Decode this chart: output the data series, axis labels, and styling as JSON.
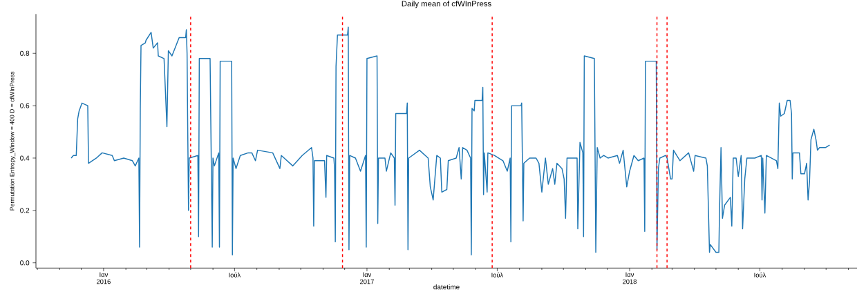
{
  "chart_data": {
    "type": "line",
    "title": "Daily mean of cfWInPress",
    "xlabel": "datetime",
    "ylabel": "Permutation Entropy_Window = 400 D = cfWInPress",
    "xlim": [
      "2015-09-29",
      "2018-11-13"
    ],
    "ylim": [
      -0.02,
      0.95
    ],
    "yticks": [
      {
        "value": 0,
        "label": "0.0"
      },
      0.2,
      0.4,
      0.6,
      0.8
    ],
    "xticks": [
      {
        "value": "2015-10-01",
        "label": null
      },
      {
        "value": "2015-11-01",
        "label": null
      },
      {
        "value": "2015-12-01",
        "label": null
      },
      {
        "value": "2016-01-01",
        "label": "Ιαν 2016"
      },
      {
        "value": "2016-02-01",
        "label": null
      },
      {
        "value": "2016-03-01",
        "label": null
      },
      {
        "value": "2016-04-01",
        "label": null
      },
      {
        "value": "2016-05-01",
        "label": null
      },
      {
        "value": "2016-06-01",
        "label": null
      },
      {
        "value": "2016-07-01",
        "label": "Ιούλ"
      },
      {
        "value": "2016-08-01",
        "label": null
      },
      {
        "value": "2016-09-01",
        "label": null
      },
      {
        "value": "2016-10-01",
        "label": null
      },
      {
        "value": "2016-11-01",
        "label": null
      },
      {
        "value": "2016-12-01",
        "label": null
      },
      {
        "value": "2017-01-01",
        "label": "Ιαν 2017"
      },
      {
        "value": "2017-02-01",
        "label": null
      },
      {
        "value": "2017-03-01",
        "label": null
      },
      {
        "value": "2017-04-01",
        "label": null
      },
      {
        "value": "2017-05-01",
        "label": null
      },
      {
        "value": "2017-06-01",
        "label": null
      },
      {
        "value": "2017-07-01",
        "label": "Ιούλ"
      },
      {
        "value": "2017-08-01",
        "label": null
      },
      {
        "value": "2017-09-01",
        "label": null
      },
      {
        "value": "2017-10-01",
        "label": null
      },
      {
        "value": "2017-11-01",
        "label": null
      },
      {
        "value": "2017-12-01",
        "label": null
      },
      {
        "value": "2018-01-01",
        "label": "Ιαν 2018"
      },
      {
        "value": "2018-02-01",
        "label": null
      },
      {
        "value": "2018-03-01",
        "label": null
      },
      {
        "value": "2018-04-01",
        "label": null
      },
      {
        "value": "2018-05-01",
        "label": null
      },
      {
        "value": "2018-06-01",
        "label": null
      },
      {
        "value": "2018-07-01",
        "label": "Ιούλ"
      },
      {
        "value": "2018-08-01",
        "label": null
      },
      {
        "value": "2018-09-01",
        "label": null
      },
      {
        "value": "2018-10-01",
        "label": null
      },
      {
        "value": "2018-11-01",
        "label": null
      }
    ],
    "grid": false,
    "marker": "none",
    "line_style": "solid",
    "ref_lines": [
      {
        "axis": "x",
        "value": "2016-05-01",
        "color": "#ff0000",
        "line_style": "dashed"
      },
      {
        "axis": "x",
        "value": "2016-11-28",
        "color": "#ff0000",
        "line_style": "dashed"
      },
      {
        "axis": "x",
        "value": "2017-06-24",
        "color": "#ff0000",
        "line_style": "dashed"
      },
      {
        "axis": "x",
        "value": "2018-02-08",
        "color": "#ff0000",
        "line_style": "dashed"
      },
      {
        "axis": "x",
        "value": "2018-02-22",
        "color": "#ff0000",
        "line_style": "dashed"
      }
    ],
    "series": [
      {
        "color": "#1f77b4",
        "x": [
          "2015-11-17",
          "2015-11-20",
          "2015-11-24",
          "2015-11-26",
          "2015-11-28",
          "2015-12-02",
          "2015-12-10",
          "2015-12-11",
          "2015-12-22",
          "2015-12-30",
          "2016-01-13",
          "2016-01-16",
          "2016-01-29",
          "2016-02-10",
          "2016-02-14",
          "2016-02-19",
          "2016-02-20",
          "2016-02-21",
          "2016-02-22",
          "2016-02-28",
          "2016-02-29",
          "2016-03-07",
          "2016-03-10",
          "2016-03-16",
          "2016-03-17",
          "2016-03-25",
          "2016-03-29",
          "2016-03-31",
          "2016-04-05",
          "2016-04-15",
          "2016-04-19",
          "2016-04-24",
          "2016-04-25",
          "2016-04-26",
          "2016-04-27",
          "2016-04-28",
          "2016-04-29",
          "2016-05-11",
          "2016-05-12",
          "2016-05-13",
          "2016-05-28",
          "2016-05-31",
          "2016-06-01",
          "2016-06-03",
          "2016-06-09",
          "2016-06-10",
          "2016-06-11",
          "2016-06-27",
          "2016-06-28",
          "2016-06-29",
          "2016-07-03",
          "2016-07-09",
          "2016-07-20",
          "2016-07-25",
          "2016-07-30",
          "2016-08-02",
          "2016-08-23",
          "2016-09-02",
          "2016-09-04",
          "2016-09-20",
          "2016-10-03",
          "2016-10-16",
          "2016-10-18",
          "2016-10-19",
          "2016-10-20",
          "2016-11-03",
          "2016-11-05",
          "2016-11-06",
          "2016-11-16",
          "2016-11-17",
          "2016-11-18",
          "2016-11-19",
          "2016-11-21",
          "2016-12-05",
          "2016-12-06",
          "2016-12-07",
          "2016-12-08",
          "2016-12-16",
          "2016-12-23",
          "2016-12-30",
          "2016-12-31",
          "2017-01-01",
          "2017-01-15",
          "2017-01-16",
          "2017-01-17",
          "2017-01-26",
          "2017-01-28",
          "2017-02-03",
          "2017-02-08",
          "2017-02-09",
          "2017-02-10",
          "2017-02-25",
          "2017-02-26",
          "2017-02-27",
          "2017-02-28",
          "2017-03-15",
          "2017-03-27",
          "2017-03-30",
          "2017-04-03",
          "2017-04-08",
          "2017-04-13",
          "2017-04-15",
          "2017-04-22",
          "2017-04-24",
          "2017-05-05",
          "2017-05-09",
          "2017-05-12",
          "2017-05-14",
          "2017-05-20",
          "2017-05-25",
          "2017-05-26",
          "2017-05-27",
          "2017-05-30",
          "2017-05-31",
          "2017-06-10",
          "2017-06-11",
          "2017-06-12",
          "2017-06-13",
          "2017-06-17",
          "2017-06-18",
          "2017-06-27",
          "2017-07-09",
          "2017-07-15",
          "2017-07-19",
          "2017-07-20",
          "2017-07-21",
          "2017-08-03",
          "2017-08-04",
          "2017-08-06",
          "2017-08-07",
          "2017-08-15",
          "2017-08-24",
          "2017-08-28",
          "2017-09-01",
          "2017-09-06",
          "2017-09-10",
          "2017-09-16",
          "2017-09-19",
          "2017-09-22",
          "2017-09-29",
          "2017-10-02",
          "2017-10-04",
          "2017-10-06",
          "2017-10-20",
          "2017-10-21",
          "2017-10-24",
          "2017-10-28",
          "2017-10-29",
          "2017-10-30",
          "2017-11-13",
          "2017-11-15",
          "2017-11-17",
          "2017-11-21",
          "2017-11-26",
          "2017-12-02",
          "2017-12-15",
          "2017-12-18",
          "2017-12-23",
          "2017-12-28",
          "2018-01-01",
          "2018-01-07",
          "2018-01-13",
          "2018-01-21",
          "2018-01-22",
          "2018-01-23",
          "2018-02-07",
          "2018-02-08",
          "2018-02-10",
          "2018-02-12",
          "2018-02-20",
          "2018-02-22",
          "2018-02-27",
          "2018-03-01",
          "2018-03-03",
          "2018-03-12",
          "2018-03-24",
          "2018-03-31",
          "2018-04-02",
          "2018-04-17",
          "2018-04-19",
          "2018-04-22",
          "2018-04-23",
          "2018-05-01",
          "2018-05-05",
          "2018-05-06",
          "2018-05-08",
          "2018-05-10",
          "2018-05-13",
          "2018-05-21",
          "2018-05-23",
          "2018-05-25",
          "2018-05-29",
          "2018-06-01",
          "2018-06-05",
          "2018-06-07",
          "2018-06-10",
          "2018-06-13",
          "2018-06-24",
          "2018-07-03",
          "2018-07-04",
          "2018-07-05",
          "2018-07-08",
          "2018-07-10",
          "2018-07-24",
          "2018-07-26",
          "2018-07-28",
          "2018-07-30",
          "2018-08-04",
          "2018-08-08",
          "2018-08-12",
          "2018-08-14",
          "2018-08-15",
          "2018-08-16",
          "2018-08-25",
          "2018-08-27",
          "2018-09-01",
          "2018-09-04",
          "2018-09-06",
          "2018-09-08",
          "2018-09-10",
          "2018-09-14",
          "2018-09-17",
          "2018-09-19",
          "2018-09-22",
          "2018-09-30",
          "2018-10-06"
        ],
        "values": [
          0.4,
          0.41,
          0.41,
          0.55,
          0.58,
          0.61,
          0.6,
          0.38,
          0.4,
          0.42,
          0.41,
          0.39,
          0.4,
          0.39,
          0.37,
          0.4,
          0.06,
          0.59,
          0.83,
          0.84,
          0.85,
          0.88,
          0.82,
          0.84,
          0.79,
          0.78,
          0.52,
          0.81,
          0.79,
          0.86,
          0.86,
          0.86,
          0.89,
          0.8,
          0.49,
          0.2,
          0.4,
          0.41,
          0.1,
          0.78,
          0.78,
          0.06,
          0.4,
          0.37,
          0.42,
          0.06,
          0.77,
          0.77,
          0.03,
          0.4,
          0.36,
          0.41,
          0.42,
          0.42,
          0.39,
          0.43,
          0.42,
          0.36,
          0.41,
          0.37,
          0.41,
          0.44,
          0.4,
          0.14,
          0.39,
          0.39,
          0.25,
          0.41,
          0.4,
          0.36,
          0.08,
          0.75,
          0.87,
          0.87,
          0.9,
          0.05,
          0.41,
          0.4,
          0.35,
          0.41,
          0.06,
          0.78,
          0.79,
          0.15,
          0.4,
          0.4,
          0.35,
          0.42,
          0.4,
          0.22,
          0.57,
          0.57,
          0.61,
          0.05,
          0.4,
          0.43,
          0.4,
          0.29,
          0.24,
          0.41,
          0.4,
          0.27,
          0.28,
          0.39,
          0.4,
          0.44,
          0.32,
          0.44,
          0.43,
          0.4,
          0.03,
          0.59,
          0.58,
          0.62,
          0.62,
          0.67,
          0.26,
          0.42,
          0.27,
          0.42,
          0.41,
          0.39,
          0.35,
          0.4,
          0.08,
          0.6,
          0.6,
          0.61,
          0.16,
          0.38,
          0.4,
          0.4,
          0.38,
          0.27,
          0.4,
          0.3,
          0.36,
          0.3,
          0.38,
          0.36,
          0.32,
          0.17,
          0.4,
          0.4,
          0.13,
          0.46,
          0.42,
          0.1,
          0.79,
          0.78,
          0.04,
          0.44,
          0.4,
          0.41,
          0.4,
          0.41,
          0.38,
          0.43,
          0.29,
          0.35,
          0.41,
          0.39,
          0.4,
          0.12,
          0.77,
          0.77,
          0.05,
          0.36,
          0.4,
          0.41,
          0.4,
          0.32,
          0.32,
          0.43,
          0.39,
          0.42,
          0.35,
          0.41,
          0.4,
          0.37,
          0.04,
          0.07,
          0.04,
          0.04,
          0.21,
          0.44,
          0.17,
          0.22,
          0.25,
          0.14,
          0.4,
          0.4,
          0.33,
          0.41,
          0.13,
          0.32,
          0.4,
          0.4,
          0.41,
          0.24,
          0.4,
          0.19,
          0.41,
          0.39,
          0.36,
          0.61,
          0.56,
          0.57,
          0.62,
          0.62,
          0.57,
          0.32,
          0.42,
          0.42,
          0.34,
          0.34,
          0.38,
          0.24,
          0.31,
          0.47,
          0.51,
          0.47,
          0.43,
          0.44,
          0.44,
          0.45
        ]
      }
    ]
  }
}
